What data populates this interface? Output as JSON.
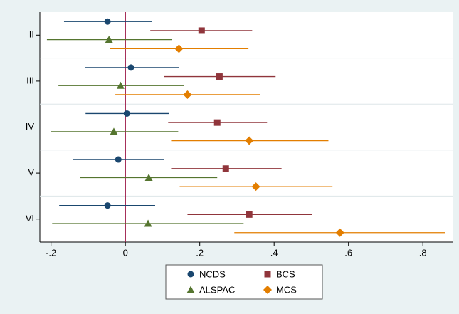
{
  "chart_data": {
    "type": "coefplot",
    "categories": [
      "II",
      "III",
      "IV",
      "V",
      "VI"
    ],
    "series": [
      {
        "name": "NCDS",
        "color": "#1a476f",
        "marker": "circle",
        "values": [
          -0.048,
          0.015,
          0.004,
          -0.019,
          -0.048
        ],
        "ci_low": [
          -0.165,
          -0.109,
          -0.107,
          -0.142,
          -0.178
        ],
        "ci_high": [
          0.071,
          0.144,
          0.117,
          0.103,
          0.08
        ]
      },
      {
        "name": "BCS",
        "color": "#90353b",
        "marker": "square",
        "values": [
          0.205,
          0.253,
          0.247,
          0.27,
          0.333
        ],
        "ci_low": [
          0.067,
          0.103,
          0.115,
          0.123,
          0.167
        ],
        "ci_high": [
          0.341,
          0.404,
          0.381,
          0.42,
          0.502
        ]
      },
      {
        "name": "ALSPAC",
        "color": "#55752f",
        "marker": "triangle",
        "values": [
          -0.044,
          -0.013,
          -0.031,
          0.063,
          0.061
        ],
        "ci_low": [
          -0.211,
          -0.18,
          -0.201,
          -0.121,
          -0.197
        ],
        "ci_high": [
          0.126,
          0.157,
          0.142,
          0.247,
          0.318
        ]
      },
      {
        "name": "MCS",
        "color": "#e37e00",
        "marker": "diamond",
        "values": [
          0.144,
          0.167,
          0.333,
          0.351,
          0.577
        ],
        "ci_low": [
          -0.042,
          -0.027,
          0.123,
          0.146,
          0.293
        ],
        "ci_high": [
          0.331,
          0.362,
          0.546,
          0.557,
          0.86
        ]
      }
    ],
    "xlim": [
      -0.23,
      0.88
    ],
    "xticks": [
      {
        "value": -0.2,
        "label": "-.2"
      },
      0,
      {
        "value": 0.2,
        "label": ".2"
      },
      {
        "value": 0.4,
        "label": ".4"
      },
      {
        "value": 0.6,
        "label": ".6"
      },
      {
        "value": 0.8,
        "label": ".8"
      }
    ],
    "reference_line": 0,
    "reference_color": "#a0204d",
    "legend": "bottom"
  }
}
